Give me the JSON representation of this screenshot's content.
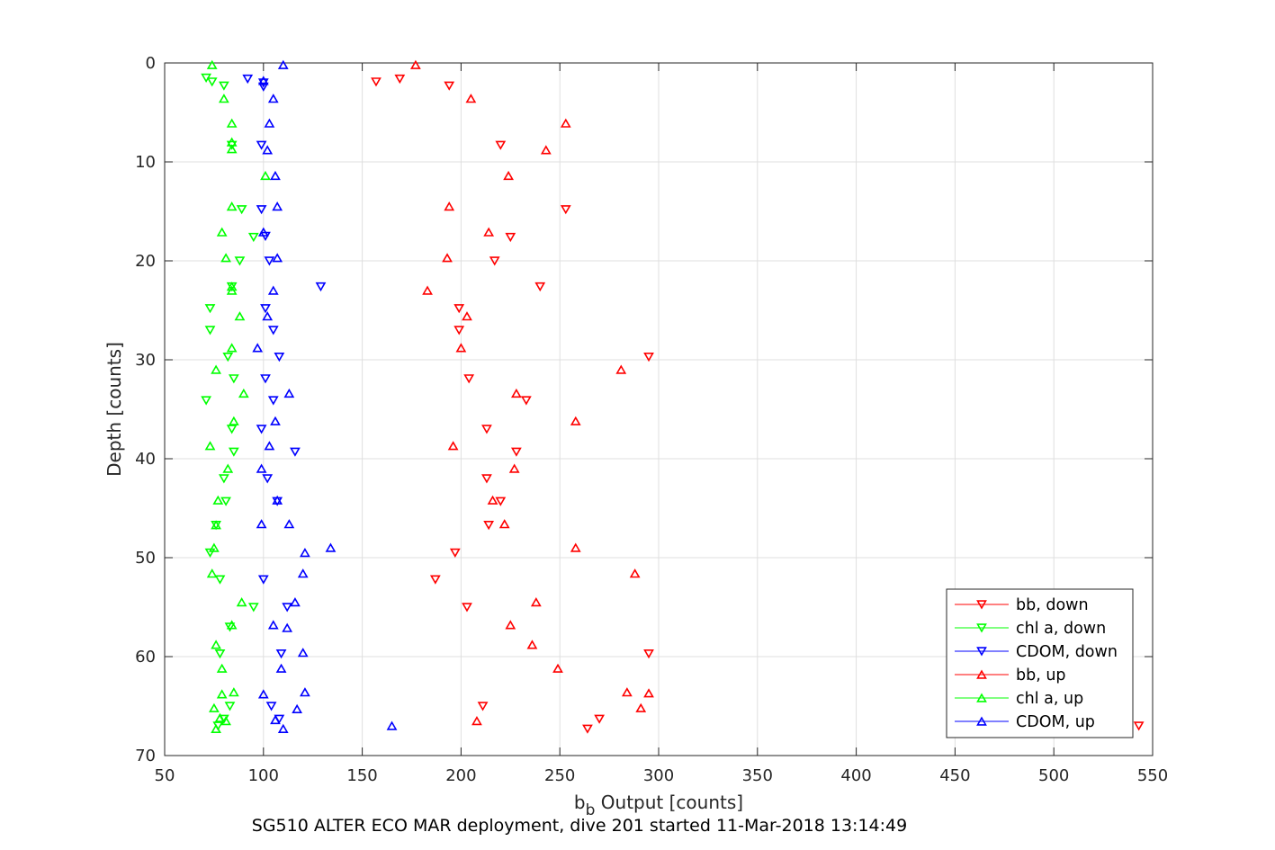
{
  "chart_data": {
    "type": "scatter",
    "xlabel": "b",
    "xlabel_sub": "b",
    "xlabel_rest": " Output [counts]",
    "ylabel": "Depth [counts]",
    "caption": "SG510 ALTER ECO MAR deployment, dive 201 started 11-Mar-2018 13:14:49",
    "xlim": [
      50,
      550
    ],
    "ylim": [
      0,
      70
    ],
    "y_reversed": true,
    "grid": true,
    "legend_position": "bottom-right",
    "xticks": [
      "50",
      "100",
      "150",
      "200",
      "250",
      "300",
      "350",
      "400",
      "450",
      "500",
      "550"
    ],
    "yticks": [
      "0",
      "10",
      "20",
      "30",
      "40",
      "50",
      "60",
      "70"
    ],
    "series": [
      {
        "name": "bb, down",
        "color": "#ff0000",
        "marker": "triangle-down",
        "points": [
          [
            157,
            1.9
          ],
          [
            169,
            1.6
          ],
          [
            194,
            2.3
          ],
          [
            220,
            8.3
          ],
          [
            253,
            14.8
          ],
          [
            225,
            17.6
          ],
          [
            217,
            20.0
          ],
          [
            240,
            22.6
          ],
          [
            199,
            24.8
          ],
          [
            199,
            27.0
          ],
          [
            295,
            29.7
          ],
          [
            204,
            31.9
          ],
          [
            233,
            34.1
          ],
          [
            213,
            37.0
          ],
          [
            228,
            39.3
          ],
          [
            213,
            42.0
          ],
          [
            220,
            44.3
          ],
          [
            214,
            46.7
          ],
          [
            197,
            49.5
          ],
          [
            187,
            52.2
          ],
          [
            203,
            55.0
          ],
          [
            295,
            59.7
          ],
          [
            211,
            65.0
          ],
          [
            270,
            66.3
          ],
          [
            264,
            67.3
          ],
          [
            543,
            67.0
          ]
        ]
      },
      {
        "name": "chl a, down",
        "color": "#00ff00",
        "marker": "triangle-down",
        "points": [
          [
            71,
            1.5
          ],
          [
            74,
            1.9
          ],
          [
            80,
            2.3
          ],
          [
            84,
            8.3
          ],
          [
            89,
            14.8
          ],
          [
            95,
            17.6
          ],
          [
            88,
            20.0
          ],
          [
            84,
            22.6
          ],
          [
            73,
            24.8
          ],
          [
            73,
            27.0
          ],
          [
            82,
            29.7
          ],
          [
            85,
            31.9
          ],
          [
            71,
            34.1
          ],
          [
            84,
            37.0
          ],
          [
            85,
            39.3
          ],
          [
            80,
            42.0
          ],
          [
            81,
            44.3
          ],
          [
            76,
            46.7
          ],
          [
            73,
            49.5
          ],
          [
            78,
            52.2
          ],
          [
            95,
            55.0
          ],
          [
            83,
            57.0
          ],
          [
            78,
            59.7
          ],
          [
            83,
            65.0
          ],
          [
            80,
            66.3
          ],
          [
            77,
            67.0
          ]
        ]
      },
      {
        "name": "CDOM, down",
        "color": "#0000ff",
        "marker": "triangle-down",
        "points": [
          [
            92,
            1.6
          ],
          [
            100,
            2.0
          ],
          [
            100,
            2.4
          ],
          [
            99,
            8.3
          ],
          [
            99,
            14.8
          ],
          [
            101,
            17.5
          ],
          [
            103,
            20.0
          ],
          [
            129,
            22.6
          ],
          [
            101,
            24.8
          ],
          [
            105,
            27.0
          ],
          [
            108,
            29.7
          ],
          [
            101,
            31.9
          ],
          [
            105,
            34.1
          ],
          [
            99,
            37.0
          ],
          [
            116,
            39.3
          ],
          [
            102,
            42.0
          ],
          [
            107,
            44.3
          ],
          [
            100,
            52.2
          ],
          [
            112,
            55.0
          ],
          [
            109,
            59.7
          ],
          [
            104,
            65.0
          ],
          [
            108,
            66.3
          ]
        ]
      },
      {
        "name": "bb, up",
        "color": "#ff0000",
        "marker": "triangle-up",
        "points": [
          [
            177,
            0.2
          ],
          [
            205,
            3.6
          ],
          [
            253,
            6.1
          ],
          [
            243,
            8.8
          ],
          [
            224,
            11.4
          ],
          [
            194,
            14.5
          ],
          [
            214,
            17.1
          ],
          [
            193,
            19.7
          ],
          [
            183,
            23.0
          ],
          [
            203,
            25.6
          ],
          [
            200,
            28.8
          ],
          [
            281,
            31.0
          ],
          [
            228,
            33.4
          ],
          [
            258,
            36.2
          ],
          [
            196,
            38.7
          ],
          [
            227,
            41.0
          ],
          [
            216,
            44.2
          ],
          [
            222,
            46.6
          ],
          [
            258,
            49.0
          ],
          [
            288,
            51.6
          ],
          [
            238,
            54.5
          ],
          [
            225,
            56.8
          ],
          [
            236,
            58.8
          ],
          [
            249,
            61.2
          ],
          [
            284,
            63.6
          ],
          [
            295,
            63.7
          ],
          [
            291,
            65.2
          ],
          [
            208,
            66.5
          ]
        ]
      },
      {
        "name": "chl a, up",
        "color": "#00ff00",
        "marker": "triangle-up",
        "points": [
          [
            74,
            0.2
          ],
          [
            80,
            3.6
          ],
          [
            84,
            6.1
          ],
          [
            84,
            8.0
          ],
          [
            84,
            8.7
          ],
          [
            101,
            11.4
          ],
          [
            84,
            14.5
          ],
          [
            79,
            17.1
          ],
          [
            81,
            19.7
          ],
          [
            84,
            22.6
          ],
          [
            84,
            23.0
          ],
          [
            88,
            25.6
          ],
          [
            84,
            28.8
          ],
          [
            76,
            31.0
          ],
          [
            90,
            33.4
          ],
          [
            85,
            36.2
          ],
          [
            73,
            38.7
          ],
          [
            82,
            41.0
          ],
          [
            77,
            44.2
          ],
          [
            76,
            46.7
          ],
          [
            75,
            49.0
          ],
          [
            74,
            51.6
          ],
          [
            89,
            54.5
          ],
          [
            84,
            56.8
          ],
          [
            76,
            58.8
          ],
          [
            79,
            61.2
          ],
          [
            79,
            63.8
          ],
          [
            85,
            63.6
          ],
          [
            75,
            65.2
          ],
          [
            78,
            66.2
          ],
          [
            81,
            66.5
          ],
          [
            76,
            67.3
          ]
        ]
      },
      {
        "name": "CDOM, up",
        "color": "#0000ff",
        "marker": "triangle-up",
        "points": [
          [
            110,
            0.2
          ],
          [
            100,
            1.8
          ],
          [
            105,
            3.6
          ],
          [
            103,
            6.1
          ],
          [
            102,
            8.8
          ],
          [
            106,
            11.4
          ],
          [
            107,
            14.5
          ],
          [
            100,
            17.1
          ],
          [
            107,
            19.7
          ],
          [
            105,
            23.0
          ],
          [
            102,
            25.6
          ],
          [
            97,
            28.8
          ],
          [
            113,
            33.4
          ],
          [
            106,
            36.2
          ],
          [
            103,
            38.7
          ],
          [
            99,
            41.0
          ],
          [
            107,
            44.2
          ],
          [
            99,
            46.6
          ],
          [
            113,
            46.6
          ],
          [
            134,
            49.0
          ],
          [
            121,
            49.5
          ],
          [
            120,
            51.6
          ],
          [
            116,
            54.5
          ],
          [
            105,
            56.8
          ],
          [
            112,
            57.1
          ],
          [
            120,
            59.6
          ],
          [
            109,
            61.2
          ],
          [
            100,
            63.8
          ],
          [
            121,
            63.6
          ],
          [
            117,
            65.3
          ],
          [
            106,
            66.4
          ],
          [
            110,
            67.3
          ],
          [
            165,
            67.0
          ]
        ]
      }
    ]
  }
}
